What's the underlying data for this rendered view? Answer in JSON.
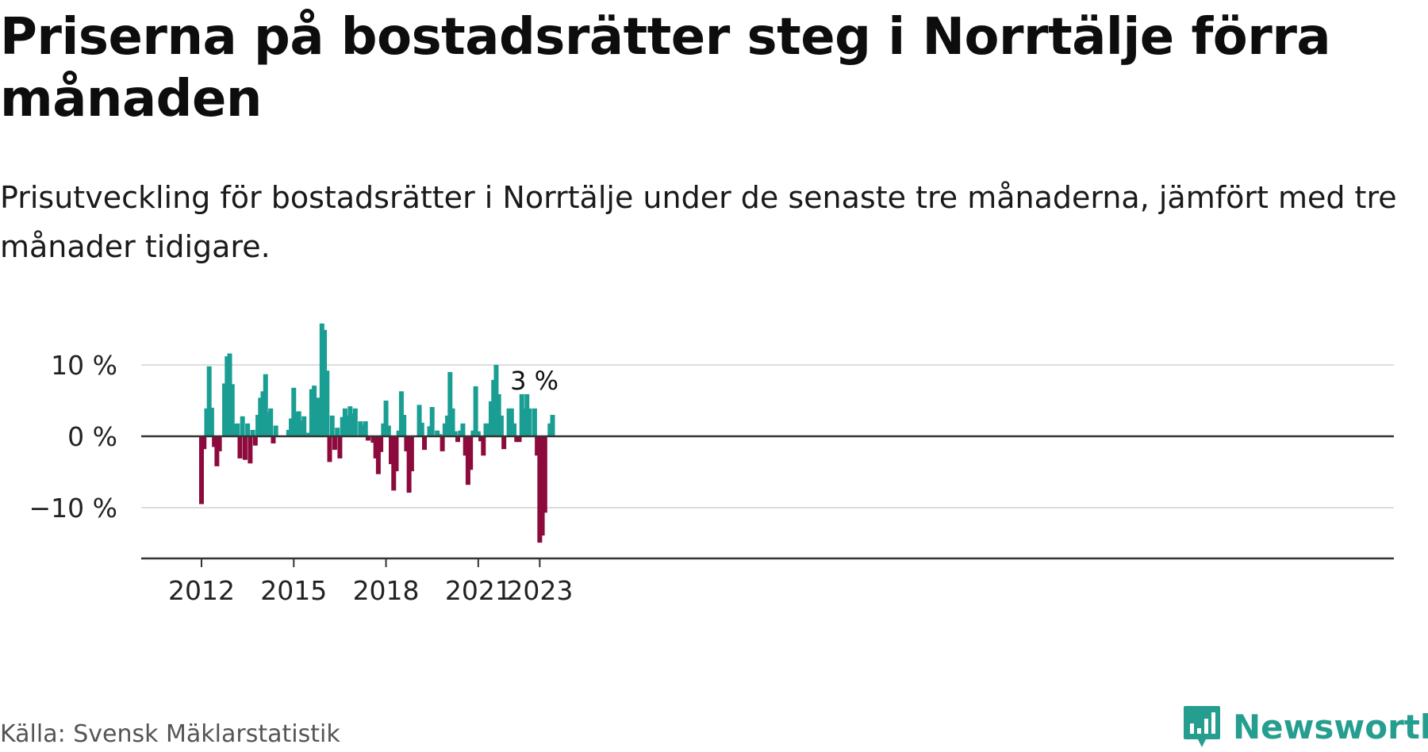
{
  "title": "Priserna på bostadsrätter steg i Norrtälje förra månaden",
  "subtitle": "Prisutveckling för bostadsrätter i Norrtälje under de senaste tre månaderna, jämfört med tre månader tidigare.",
  "source": "Källa: Svensk Mäklarstatistik",
  "logo": {
    "text": "Newsworthy",
    "icon": "newsworthy-chart-icon",
    "color": "#259e8f"
  },
  "colors": {
    "positive": "#1a9e93",
    "negative": "#8c0a3c",
    "grid": "#dddddd",
    "axis": "#333333"
  },
  "chart_data": {
    "type": "bar",
    "title": "Priserna på bostadsrätter steg i Norrtälje förra månaden",
    "xlabel": "",
    "ylabel": "",
    "unit": "%",
    "ylim": [
      -17,
      15.5
    ],
    "yticks": [
      -10,
      0,
      10
    ],
    "ytick_labels": [
      "−10 %",
      "0 %",
      "10 %"
    ],
    "xticks": [
      "2012",
      "2015",
      "2018",
      "2021",
      "2023"
    ],
    "grid": true,
    "annotation": {
      "label": "3 %",
      "x": "2023-02",
      "value": 3
    },
    "x_start": "2012-01",
    "x_end": "2023-02",
    "series": [
      {
        "values": [
          -9.5,
          -1.8,
          3.9,
          9.8,
          4.0,
          -1.5,
          -4.2,
          -2.1,
          null,
          7.4,
          11.2,
          11.6,
          7.3,
          1.7,
          1.8,
          -3.1,
          2.8,
          -3.3,
          1.8,
          -3.8,
          0.9,
          -1.3,
          3.0,
          5.4,
          6.3,
          8.7,
          3.4,
          3.9,
          -1.0,
          1.5,
          null,
          null,
          null,
          null,
          0.9,
          2.5,
          6.8,
          3.4,
          3.5,
          2.2,
          2.8,
          0.5,
          0.5,
          6.6,
          7.1,
          5.4,
          5.4,
          15.8,
          14.9,
          9.2,
          -3.6,
          2.9,
          -1.9,
          1.2,
          -3.1,
          2.7,
          3.9,
          2.9,
          4.2,
          3.2,
          3.9,
          null,
          2.1,
          1.6,
          2.1,
          -0.6,
          null,
          -0.9,
          -3.1,
          -5.3,
          -2.2,
          1.8,
          5.0,
          1.5,
          -3.9,
          -7.6,
          -4.9,
          0.8,
          6.3,
          3.0,
          -2.1,
          -7.9,
          -4.9,
          null,
          null,
          4.4,
          1.9,
          -1.9,
          null,
          1.4,
          4.1,
          null,
          0.8,
          0.3,
          -2.1,
          1.8,
          2.9,
          9.0,
          3.9,
          0.7,
          -0.8,
          0.8,
          1.8,
          -2.7,
          -6.8,
          -4.7,
          0.8,
          7.0,
          0.7,
          -0.7,
          -2.7,
          1.8,
          1.8,
          4.9,
          7.9,
          10.0,
          5.9,
          2.9,
          -1.8,
          null,
          3.9,
          3.9,
          1.8,
          -0.8,
          -0.8,
          5.9,
          3.9,
          5.9,
          3.9,
          null,
          3.9,
          -2.7,
          -14.9,
          -13.9,
          -10.7,
          null,
          1.8,
          3.0
        ]
      }
    ]
  }
}
